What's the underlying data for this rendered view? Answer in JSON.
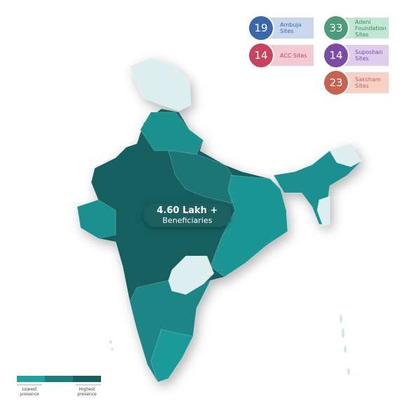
{
  "badges": [
    {
      "count": 19,
      "label": "Ambuja Sites"
    },
    {
      "count": 33,
      "label": "Adani Foundation Sites"
    },
    {
      "count": 14,
      "label": "ACC Sites"
    },
    {
      "count": 14,
      "label": "Suposhan Sites"
    },
    {
      "count": 23,
      "label": "Saksham Sites"
    }
  ],
  "highlight": {
    "value": "4.60 Lakh +",
    "label": "Beneficiaries"
  },
  "legend": {
    "low": "Lowest presence",
    "high": "Highest presence"
  }
}
